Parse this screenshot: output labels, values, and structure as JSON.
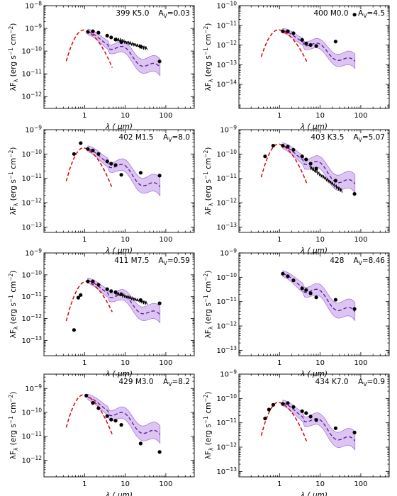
{
  "chart_data": [
    {
      "type": "scatter",
      "id": "399",
      "spt": "K5.0",
      "av_label": "A_V=0.03",
      "xscale": "log",
      "yscale": "log",
      "xlim": [
        0.1,
        500
      ],
      "ylim": [
        3e-13,
        1e-08
      ],
      "ylabel": "λF_λ (erg s^-1 cm^-2)",
      "xlabel": "λ (μm)",
      "xticks": [
        "1",
        "10",
        "100"
      ],
      "yticks": [
        {
          "v": 1e-12,
          "label": "10^-12"
        },
        {
          "v": 1e-11,
          "label": "10^-11"
        },
        {
          "v": 1e-10,
          "label": "10^-10"
        },
        {
          "v": 1e-09,
          "label": "10^-9"
        },
        {
          "v": 1e-08,
          "label": "10^-8"
        }
      ],
      "points": [
        [
          1.2,
          7e-10
        ],
        [
          1.6,
          7.5e-10
        ],
        [
          2.2,
          6.5e-10
        ],
        [
          3.6,
          4.8e-10
        ],
        [
          4.5,
          4e-10
        ],
        [
          5.8,
          3.2e-10
        ],
        [
          8,
          2.5e-10
        ],
        [
          24,
          1.6e-10
        ],
        [
          70,
          3.5e-11
        ]
      ],
      "photosphere": {
        "peak_x": 0.95,
        "peak_y": 8.5e-10
      },
      "model_anchor": {
        "x": 1.2,
        "y": 6.5e-10
      },
      "spectrum": {
        "x0": 5.5,
        "x1": 35,
        "y0": 3.5e-10,
        "y1": 1.3e-10
      }
    },
    {
      "type": "scatter",
      "id": "400",
      "spt": "M0.0",
      "av_label": "A_V=4.5",
      "xscale": "log",
      "yscale": "log",
      "xlim": [
        0.1,
        500
      ],
      "ylim": [
        6e-16,
        1e-10
      ],
      "ylabel": "λF_λ (erg s^-1 cm^-2)",
      "xlabel": "λ (μm)",
      "xticks": [
        "1",
        "10",
        "100"
      ],
      "yticks": [
        {
          "v": 1e-14,
          "label": "10^-14"
        },
        {
          "v": 1e-13,
          "label": "10^-13"
        },
        {
          "v": 1e-12,
          "label": "10^-12"
        },
        {
          "v": 1e-11,
          "label": "10^-11"
        },
        {
          "v": 1e-10,
          "label": "10^-10"
        }
      ],
      "points": [
        [
          1.2,
          5e-12
        ],
        [
          1.6,
          5e-12
        ],
        [
          2.2,
          4e-12
        ],
        [
          3.6,
          1.8e-12
        ],
        [
          4.5,
          1.2e-12
        ],
        [
          5.8,
          1e-12
        ],
        [
          8,
          9e-13
        ],
        [
          24,
          1.5e-12
        ],
        [
          70,
          3.5e-11
        ]
      ],
      "photosphere": {
        "peak_x": 0.95,
        "peak_y": 6e-12
      },
      "model_anchor": {
        "x": 1.2,
        "y": 5e-12
      }
    },
    {
      "type": "scatter",
      "id": "402",
      "spt": "M1.5",
      "av_label": "A_V=8.0",
      "xscale": "log",
      "yscale": "log",
      "xlim": [
        0.1,
        500
      ],
      "ylim": [
        6e-14,
        1e-09
      ],
      "ylabel": "λF_λ (erg s^-1 cm^-2)",
      "xlabel": "λ (μm)",
      "xticks": [
        "1",
        "10",
        "100"
      ],
      "yticks": [
        {
          "v": 1e-13,
          "label": "10^-13"
        },
        {
          "v": 1e-12,
          "label": "10^-12"
        },
        {
          "v": 1e-11,
          "label": "10^-11"
        },
        {
          "v": 1e-10,
          "label": "10^-10"
        },
        {
          "v": 1e-09,
          "label": "10^-9"
        }
      ],
      "points": [
        [
          0.55,
          1e-10
        ],
        [
          0.8,
          2.8e-10
        ],
        [
          1.2,
          1.6e-10
        ],
        [
          1.6,
          1.4e-10
        ],
        [
          2.2,
          1e-10
        ],
        [
          3.6,
          5e-11
        ],
        [
          4.5,
          4e-11
        ],
        [
          5.8,
          3.5e-11
        ],
        [
          8,
          1.4e-11
        ],
        [
          24,
          1.7e-11
        ],
        [
          70,
          1.3e-11
        ]
      ],
      "photosphere": {
        "peak_x": 0.95,
        "peak_y": 1.8e-10
      },
      "model_anchor": {
        "x": 1.2,
        "y": 1.5e-10
      }
    },
    {
      "type": "scatter",
      "id": "403",
      "spt": "K3.5",
      "av_label": "A_V=5.07",
      "xscale": "log",
      "yscale": "log",
      "xlim": [
        0.1,
        500
      ],
      "ylim": [
        6e-14,
        1e-09
      ],
      "ylabel": "λF_λ (erg s^-1 cm^-2)",
      "xlabel": "λ (μm)",
      "xticks": [
        "1",
        "10",
        "100"
      ],
      "yticks": [
        {
          "v": 1e-13,
          "label": "10^-13"
        },
        {
          "v": 1e-12,
          "label": "10^-12"
        },
        {
          "v": 1e-11,
          "label": "10^-11"
        },
        {
          "v": 1e-10,
          "label": "10^-10"
        },
        {
          "v": 1e-09,
          "label": "10^-9"
        }
      ],
      "points": [
        [
          0.44,
          8e-11
        ],
        [
          0.7,
          2.2e-10
        ],
        [
          1.2,
          2.2e-10
        ],
        [
          1.6,
          2e-10
        ],
        [
          2.2,
          1.5e-10
        ],
        [
          3.6,
          8e-11
        ],
        [
          4.5,
          6e-11
        ],
        [
          5.8,
          4e-11
        ],
        [
          8,
          2.5e-11
        ],
        [
          24,
          8e-12
        ],
        [
          70,
          2.3e-12
        ]
      ],
      "photosphere": {
        "peak_x": 0.95,
        "peak_y": 2.6e-10
      },
      "model_anchor": {
        "x": 1.2,
        "y": 2e-10
      },
      "spectrum": {
        "x0": 5.5,
        "x1": 35,
        "y0": 3e-11,
        "y1": 3e-12
      }
    },
    {
      "type": "scatter",
      "id": "411",
      "spt": "M7.5",
      "av_label": "A_V=0.59",
      "xscale": "log",
      "yscale": "log",
      "xlim": [
        0.1,
        500
      ],
      "ylim": [
        2e-14,
        1e-09
      ],
      "ylabel": "λF_λ (erg s^-1 cm^-2)",
      "xlabel": "λ (μm)",
      "xticks": [
        "1",
        "10",
        "100"
      ],
      "yticks": [
        {
          "v": 1e-13,
          "label": "10^-13"
        },
        {
          "v": 1e-12,
          "label": "10^-12"
        },
        {
          "v": 1e-11,
          "label": "10^-11"
        },
        {
          "v": 1e-10,
          "label": "10^-10"
        },
        {
          "v": 1e-09,
          "label": "10^-9"
        }
      ],
      "points": [
        [
          0.55,
          3e-13
        ],
        [
          0.7,
          9e-12
        ],
        [
          0.8,
          1.2e-11
        ],
        [
          1.2,
          5e-11
        ],
        [
          1.6,
          5e-11
        ],
        [
          2.2,
          3.5e-11
        ],
        [
          3.6,
          2.2e-11
        ],
        [
          4.5,
          1.8e-11
        ],
        [
          5.8,
          1.6e-11
        ],
        [
          8,
          1.3e-11
        ],
        [
          24,
          7e-12
        ],
        [
          70,
          5e-12
        ]
      ],
      "photosphere": {
        "peak_x": 1.1,
        "peak_y": 5e-11
      },
      "model_anchor": {
        "x": 1.2,
        "y": 5e-11
      },
      "spectrum": {
        "x0": 5.5,
        "x1": 35,
        "y0": 1.5e-11,
        "y1": 5e-12
      }
    },
    {
      "type": "scatter",
      "id": "428",
      "spt": "",
      "av_label": "A_V=8.46",
      "xscale": "log",
      "yscale": "log",
      "xlim": [
        0.1,
        500
      ],
      "ylim": [
        6e-14,
        1e-09
      ],
      "ylabel": "λF_λ (erg s^-1 cm^-2)",
      "xlabel": "λ (μm)",
      "xticks": [
        "1",
        "10",
        "100"
      ],
      "yticks": [
        {
          "v": 1e-13,
          "label": "10^-13"
        },
        {
          "v": 1e-12,
          "label": "10^-12"
        },
        {
          "v": 1e-11,
          "label": "10^-11"
        },
        {
          "v": 1e-10,
          "label": "10^-10"
        },
        {
          "v": 1e-09,
          "label": "10^-9"
        }
      ],
      "points": [
        [
          1.2,
          1.4e-10
        ],
        [
          1.6,
          1.1e-10
        ],
        [
          2.2,
          7.5e-11
        ],
        [
          3.6,
          3.5e-11
        ],
        [
          4.5,
          3e-11
        ],
        [
          5.8,
          2.2e-11
        ],
        [
          8,
          1.5e-11
        ],
        [
          24,
          1.2e-11
        ],
        [
          70,
          5e-12
        ]
      ],
      "model_anchor": {
        "x": 1.2,
        "y": 1.3e-10
      }
    },
    {
      "type": "scatter",
      "id": "429",
      "spt": "M3.0",
      "av_label": "A_V=8.2",
      "xscale": "log",
      "yscale": "log",
      "xlim": [
        0.1,
        500
      ],
      "ylim": [
        2e-13,
        4e-09
      ],
      "ylabel": "λF_λ (erg s^-1 cm^-2)",
      "xlabel": "λ (μm)",
      "xticks": [
        "1",
        "10",
        "100"
      ],
      "yticks": [
        {
          "v": 1e-12,
          "label": "10^-12"
        },
        {
          "v": 1e-11,
          "label": "10^-11"
        },
        {
          "v": 1e-10,
          "label": "10^-10"
        },
        {
          "v": 1e-09,
          "label": "10^-9"
        }
      ],
      "points": [
        [
          1.1,
          5e-10
        ],
        [
          1.6,
          2.5e-10
        ],
        [
          2.2,
          1.5e-10
        ],
        [
          3.6,
          7e-11
        ],
        [
          4.5,
          5e-11
        ],
        [
          5.8,
          4.5e-11
        ],
        [
          8,
          3e-11
        ],
        [
          24,
          5e-12
        ],
        [
          70,
          2.2e-12
        ]
      ],
      "photosphere": {
        "peak_x": 0.95,
        "peak_y": 5.5e-10
      },
      "model_anchor": {
        "x": 1.2,
        "y": 4e-10
      }
    },
    {
      "type": "scatter",
      "id": "434",
      "spt": "K7.0",
      "av_label": "A_V=0.9",
      "xscale": "log",
      "yscale": "log",
      "xlim": [
        0.1,
        500
      ],
      "ylim": [
        6e-14,
        1e-09
      ],
      "ylabel": "λF_λ (erg s^-1 cm^-2)",
      "xlabel": "λ (μm)",
      "xticks": [
        "1",
        "10",
        "100"
      ],
      "yticks": [
        {
          "v": 1e-13,
          "label": "10^-13"
        },
        {
          "v": 1e-12,
          "label": "10^-12"
        },
        {
          "v": 1e-11,
          "label": "10^-11"
        },
        {
          "v": 1e-10,
          "label": "10^-10"
        },
        {
          "v": 1e-09,
          "label": "10^-9"
        }
      ],
      "points": [
        [
          0.44,
          1.5e-11
        ],
        [
          0.55,
          3.5e-11
        ],
        [
          0.7,
          5.5e-11
        ],
        [
          1.2,
          6e-11
        ],
        [
          1.6,
          6.5e-11
        ],
        [
          2.2,
          4.5e-11
        ],
        [
          3.6,
          3e-11
        ],
        [
          4.5,
          2.5e-11
        ],
        [
          5.8,
          1.8e-11
        ],
        [
          8,
          1.3e-11
        ],
        [
          24,
          6e-12
        ],
        [
          70,
          4e-12
        ]
      ],
      "photosphere": {
        "peak_x": 0.95,
        "peak_y": 7e-11
      },
      "model_anchor": {
        "x": 1.2,
        "y": 6e-11
      }
    }
  ]
}
